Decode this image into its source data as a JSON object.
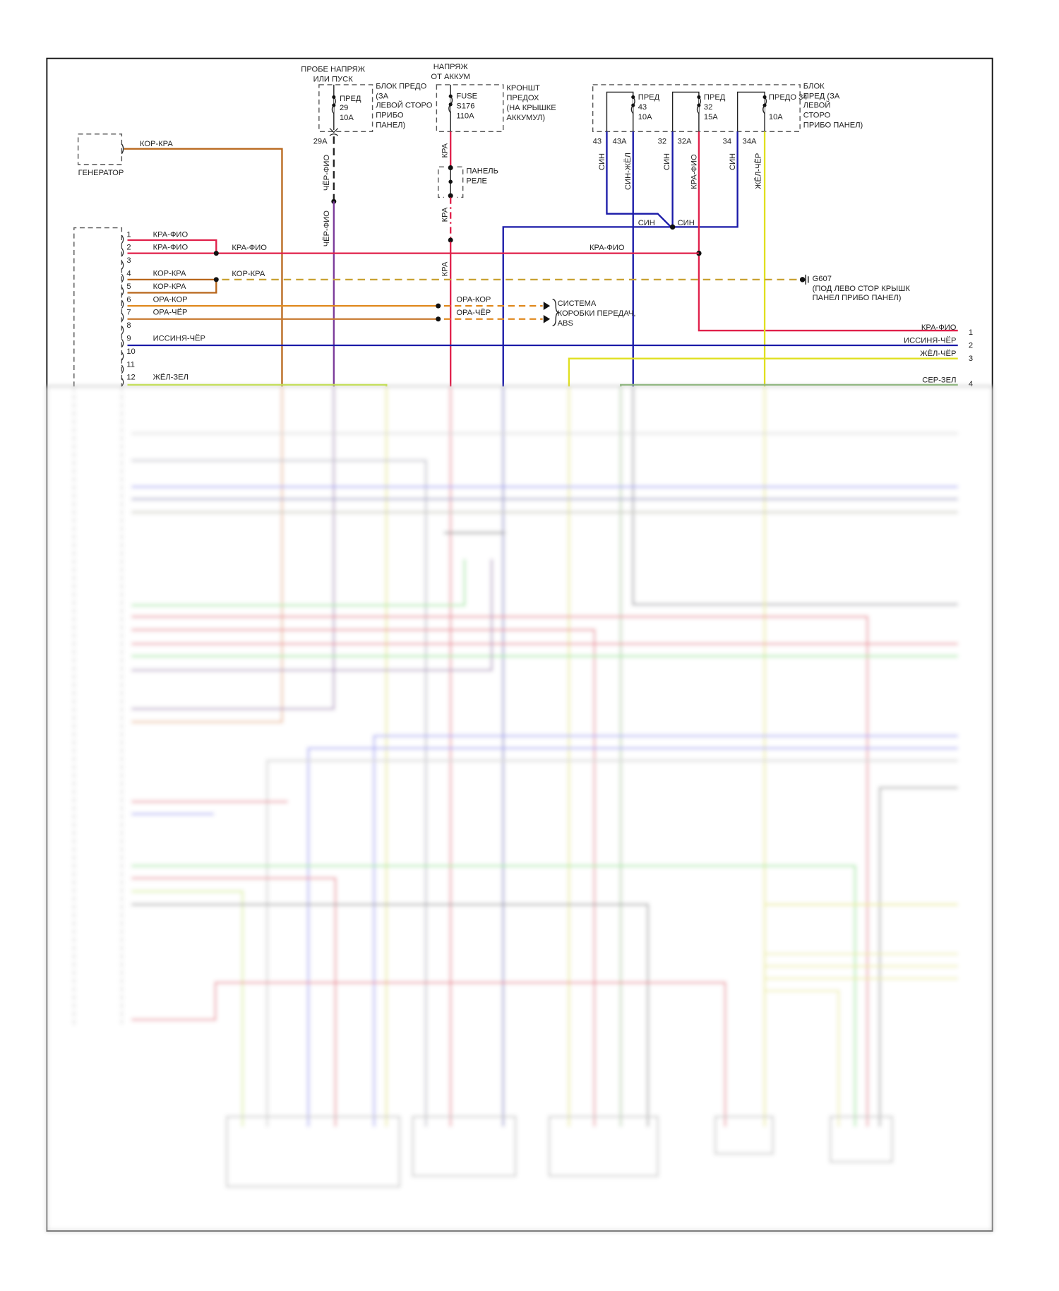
{
  "colors": {
    "red": "#e0204a",
    "orange": "#e08a20",
    "brown": "#b8661a",
    "purple": "#7a3a9a",
    "blue": "#1a1aa8",
    "yellow": "#e0e020",
    "yellow_green": "#c8e84a",
    "gray_green": "#8ab878",
    "ground_dash": "#c8a030"
  },
  "fuse_block_1": {
    "supply": [
      "ПРОБЕ НАПРЯЖ",
      "ИЛИ ПУСК"
    ],
    "fuse": [
      "ПРЕД",
      "29",
      "10А"
    ],
    "location": [
      "БЛОК ПРЕДО",
      "(ЗА",
      "ЛЕВОЙ СТОРО",
      "ПРИБО",
      "ПАНЕЛ)"
    ],
    "connector": "29A",
    "wire": "ЧЁР-ФИО"
  },
  "fuse_block_2": {
    "supply": [
      "НАПРЯЖ",
      "ОТ АККУМ"
    ],
    "fuse": [
      "FUSE",
      "S176",
      "110А"
    ],
    "location": [
      "КРОНШТ",
      "ПРЕДОХ",
      "(НА КРЫШКЕ",
      "АККУМУЛ)"
    ],
    "wire": "КРА",
    "relay_panel": [
      "ПАНЕЛЬ",
      "РЕЛЕ"
    ]
  },
  "fuse_block_3": {
    "fuses": [
      {
        "name": "ПРЕД",
        "num": "43",
        "rating": "10А",
        "in": "43",
        "out": "43A",
        "in_wire": "СИН",
        "out_wire": "СИН-ЖЁЛ"
      },
      {
        "name": "ПРЕД",
        "num": "32",
        "rating": "15А",
        "in": "32",
        "out": "32A",
        "in_wire": "СИН",
        "out_wire": "КРА-ФИО"
      },
      {
        "name": "ПРЕДО 34",
        "num": "",
        "rating": "10А",
        "in": "34",
        "out": "34A",
        "in_wire": "СИН",
        "out_wire": "ЖЁЛ-ЧЁР"
      }
    ],
    "location": [
      "БЛОК",
      "ПРЕД (ЗА",
      "ЛЕВОЙ",
      "СТОРО",
      "ПРИБО ПАНЕЛ)"
    ],
    "splice_labels": [
      "СИН",
      "СИН"
    ]
  },
  "generator": {
    "label": "ГЕНЕРАТОР",
    "wire": "КОР-КРА"
  },
  "module_pins": [
    {
      "pin": "1",
      "wire": "КРА-ФИО"
    },
    {
      "pin": "2",
      "wire": "КРА-ФИО"
    },
    {
      "pin": "3",
      "wire": ""
    },
    {
      "pin": "4",
      "wire": "КОР-КРА"
    },
    {
      "pin": "5",
      "wire": "КОР-КРА"
    },
    {
      "pin": "6",
      "wire": "ОРА-КОР"
    },
    {
      "pin": "7",
      "wire": "ОРА-ЧЁР"
    },
    {
      "pin": "8",
      "wire": ""
    },
    {
      "pin": "9",
      "wire": "ИССИНЯ-ЧЁР"
    },
    {
      "pin": "10",
      "wire": ""
    },
    {
      "pin": "11",
      "wire": ""
    },
    {
      "pin": "12",
      "wire": "ЖЁЛ-ЗЕЛ"
    }
  ],
  "junction_labels": {
    "pin2_out": "КРА-ФИО",
    "pin4_out": "КОР-КРА",
    "main_red": "КРА-ФИО",
    "pin6_out": "ОРА-КОР",
    "pin7_out": "ОРА-ЧЁР"
  },
  "abs_system": [
    "СИСТЕМА",
    "КОРОБКИ ПЕРЕДАЧ,",
    "ABS"
  ],
  "ground": {
    "id": "G607",
    "location": [
      "(ПОД ЛЕВО СТОР КРЫШК",
      "ПАНЕЛ ПРИБО ПАНЕЛ)"
    ]
  },
  "right_outputs": [
    {
      "wire": "КРА-ФИО",
      "num": "1"
    },
    {
      "wire": "ИССИНЯ-ЧЁР",
      "num": "2"
    },
    {
      "wire": "ЖЁЛ-ЧЁР",
      "num": "3"
    },
    {
      "wire": "СЕР-ЗЕЛ",
      "num": "4"
    }
  ]
}
